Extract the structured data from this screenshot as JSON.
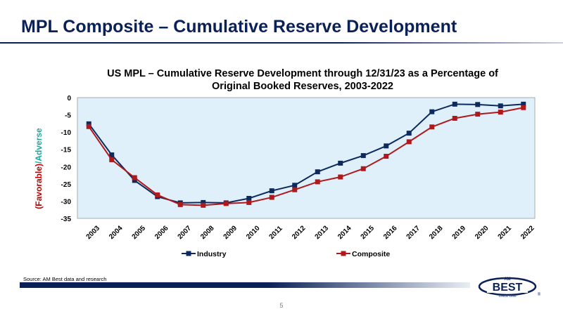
{
  "slide": {
    "title": "MPL Composite – Cumulative Reserve Development",
    "source": "Source: AM Best data and research",
    "page_number": "5"
  },
  "logo": {
    "top": "AM",
    "main": "BEST",
    "since": "SINCE 1899",
    "reg": "®"
  },
  "colors": {
    "industry": "#0d2a5e",
    "composite": "#b0191c",
    "plot_bg": "#dff0fb",
    "title": "#0a2157"
  },
  "chart_data": {
    "type": "line",
    "title_line1": "US MPL – Cumulative Reserve Development through 12/31/23 as a Percentage of",
    "title_line2": "Original Booked Reserves, 2003-2022",
    "ylabel_favorable": "(Favorable)",
    "ylabel_adverse": "/Adverse",
    "ylim": [
      -35,
      0
    ],
    "yticks": [
      0,
      -5,
      -10,
      -15,
      -20,
      -25,
      -30,
      -35
    ],
    "categories": [
      "2003",
      "2004",
      "2005",
      "2006",
      "2007",
      "2008",
      "2009",
      "2010",
      "2011",
      "2012",
      "2013",
      "2014",
      "2015",
      "2016",
      "2017",
      "2018",
      "2019",
      "2020",
      "2021",
      "2022"
    ],
    "series": [
      {
        "name": "Industry",
        "values": [
          -7.6,
          -16.6,
          -24.0,
          -28.7,
          -30.5,
          -30.4,
          -30.5,
          -29.2,
          -27.0,
          -25.4,
          -21.5,
          -19.0,
          -16.8,
          -14.0,
          -10.3,
          -4.1,
          -1.9,
          -2.0,
          -2.4,
          -1.9
        ]
      },
      {
        "name": "Composite",
        "values": [
          -8.4,
          -18.0,
          -23.2,
          -28.2,
          -31.0,
          -31.2,
          -30.7,
          -30.4,
          -28.9,
          -26.7,
          -24.4,
          -23.0,
          -20.6,
          -17.0,
          -12.8,
          -8.5,
          -6.0,
          -4.8,
          -4.2,
          -2.9
        ]
      }
    ],
    "grid": false,
    "legend_position": "bottom"
  }
}
